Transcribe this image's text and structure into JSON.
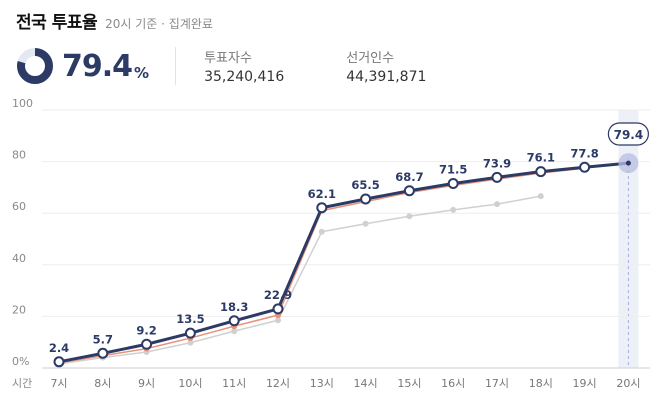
{
  "header": {
    "title": "전국 투표율",
    "subtitle": "20시 기준 · 집계완료"
  },
  "summary": {
    "rate": "79.4",
    "rate_unit": "%",
    "turnout_label": "투표자수",
    "turnout_value": "35,240,416",
    "electorate_label": "선거인수",
    "electorate_value": "44,391,871"
  },
  "colors": {
    "main": "#2c3a66",
    "orange": "#e8907a",
    "gray": "#d0d0d0",
    "donut_track": "#e4e8f2"
  },
  "chart_data": {
    "type": "line",
    "x_axis_title": "시간",
    "categories": [
      "7시",
      "8시",
      "9시",
      "10시",
      "11시",
      "12시",
      "13시",
      "14시",
      "15시",
      "16시",
      "17시",
      "18시",
      "19시",
      "20시"
    ],
    "y_ticks": [
      "0%",
      "20",
      "40",
      "60",
      "80",
      "100"
    ],
    "ylim": [
      0,
      100
    ],
    "grid": true,
    "series": [
      {
        "values": [
          2.4,
          5.7,
          9.2,
          13.5,
          18.3,
          22.9,
          62.1,
          65.5,
          68.7,
          71.5,
          73.9,
          76.1,
          77.8,
          79.4
        ],
        "color": "#2c3a66",
        "labeled": true
      },
      {
        "values": [
          2.0,
          4.8,
          7.5,
          11.6,
          16.2,
          20.5,
          61.0,
          64.5,
          68.0,
          70.8,
          73.2,
          75.6,
          77.4,
          null
        ],
        "color": "#e8907a",
        "labeled": false
      },
      {
        "values": [
          1.6,
          4.0,
          6.2,
          9.8,
          14.3,
          18.5,
          52.8,
          55.9,
          58.8,
          61.3,
          63.5,
          66.6,
          null,
          null
        ],
        "color": "#d0d0d0",
        "labeled": false
      }
    ],
    "highlight_label": "79.4"
  }
}
